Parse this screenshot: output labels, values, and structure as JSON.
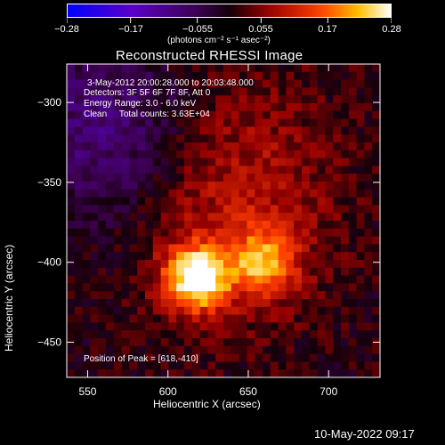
{
  "colorbar": {
    "tick_labels": [
      "−0.28",
      "−0.17",
      "−0.055",
      "0.055",
      "0.17",
      "0.28"
    ],
    "tick_values": [
      -0.28,
      -0.17,
      -0.055,
      0.055,
      0.17,
      0.28
    ],
    "unit_label": "(photons cm⁻² s⁻¹ asec⁻²)",
    "range": [
      -0.28,
      0.28
    ]
  },
  "chart_data": {
    "type": "heatmap",
    "title": "Reconstructed RHESSI Image",
    "xlabel": "Heliocentric X (arcsec)",
    "ylabel": "Heliocentric Y (arcsec)",
    "xlim": [
      537,
      732
    ],
    "ylim": [
      -472,
      -276
    ],
    "x_ticks": [
      550,
      600,
      650,
      700
    ],
    "x_tick_labels": [
      "550",
      "600",
      "650",
      "700"
    ],
    "y_ticks": [
      -300,
      -350,
      -400,
      -450
    ],
    "y_tick_labels": [
      "−300",
      "−350",
      "−400",
      "−450"
    ],
    "info_lines": [
      "3-May-2012 20:00:28.000 to 20:03:48.000",
      "Detectors: 3F 5F 6F 7F 8F, Att 0",
      "Energy Range: 3.0 - 6.0 keV",
      "Clean     Total counts: 3.63E+04"
    ],
    "peak_text": "Position of Peak = [618,-410]",
    "peak": [
      618,
      -410
    ],
    "sources": [
      {
        "x": 618,
        "y": -410,
        "amplitude": 0.28
      },
      {
        "x": 660,
        "y": -400,
        "amplitude": 0.17
      }
    ]
  },
  "footer": {
    "timestamp": "10-May-2022 09:17"
  }
}
